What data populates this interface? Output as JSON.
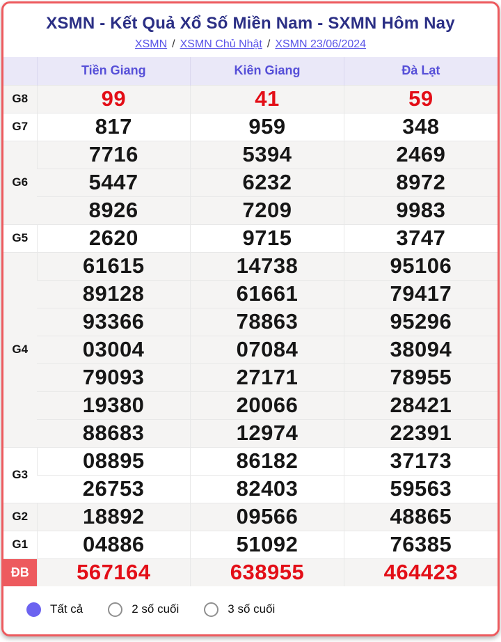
{
  "colors": {
    "border_red": "#ed5a5e",
    "red_number": "#e30e17",
    "title_navy": "#2b2f85",
    "link_purple": "#5a55e8",
    "header_bg": "#eae8f8",
    "header_text": "#564fd8",
    "shaded_row_bg": "#f5f4f3",
    "radio_selected": "#6c63f0"
  },
  "header": {
    "title": "XSMN - Kết Quả Xổ Số Miền Nam - SXMN Hôm Nay",
    "breadcrumb": [
      {
        "label": "XSMN"
      },
      {
        "label": "XSMN Chủ Nhật"
      },
      {
        "label": "XSMN 23/06/2024"
      }
    ],
    "breadcrumb_separator": "/"
  },
  "results_table": {
    "columns": [
      "Tiền Giang",
      "Kiên Giang",
      "Đà Lạt"
    ],
    "groups": [
      {
        "label": "G8",
        "highlight": "red",
        "shaded": true,
        "rows": [
          [
            "99",
            "41",
            "59"
          ]
        ]
      },
      {
        "label": "G7",
        "highlight": "none",
        "shaded": false,
        "rows": [
          [
            "817",
            "959",
            "348"
          ]
        ]
      },
      {
        "label": "G6",
        "highlight": "none",
        "shaded": true,
        "rows": [
          [
            "7716",
            "5394",
            "2469"
          ],
          [
            "5447",
            "6232",
            "8972"
          ],
          [
            "8926",
            "7209",
            "9983"
          ]
        ]
      },
      {
        "label": "G5",
        "highlight": "none",
        "shaded": false,
        "rows": [
          [
            "2620",
            "9715",
            "3747"
          ]
        ]
      },
      {
        "label": "G4",
        "highlight": "none",
        "shaded": true,
        "rows": [
          [
            "61615",
            "14738",
            "95106"
          ],
          [
            "89128",
            "61661",
            "79417"
          ],
          [
            "93366",
            "78863",
            "95296"
          ],
          [
            "03004",
            "07084",
            "38094"
          ],
          [
            "79093",
            "27171",
            "78955"
          ],
          [
            "19380",
            "20066",
            "28421"
          ],
          [
            "88683",
            "12974",
            "22391"
          ]
        ]
      },
      {
        "label": "G3",
        "highlight": "none",
        "shaded": false,
        "rows": [
          [
            "08895",
            "86182",
            "37173"
          ],
          [
            "26753",
            "82403",
            "59563"
          ]
        ]
      },
      {
        "label": "G2",
        "highlight": "none",
        "shaded": true,
        "rows": [
          [
            "18892",
            "09566",
            "48865"
          ]
        ]
      },
      {
        "label": "G1",
        "highlight": "none",
        "shaded": false,
        "rows": [
          [
            "04886",
            "51092",
            "76385"
          ]
        ]
      },
      {
        "label": "ĐB",
        "highlight": "red",
        "shaded": true,
        "label_style": "red-badge",
        "rows": [
          [
            "567164",
            "638955",
            "464423"
          ]
        ]
      }
    ]
  },
  "footer": {
    "filters": [
      {
        "label": "Tất cả",
        "selected": true
      },
      {
        "label": "2 số cuối",
        "selected": false
      },
      {
        "label": "3 số cuối",
        "selected": false
      }
    ]
  }
}
